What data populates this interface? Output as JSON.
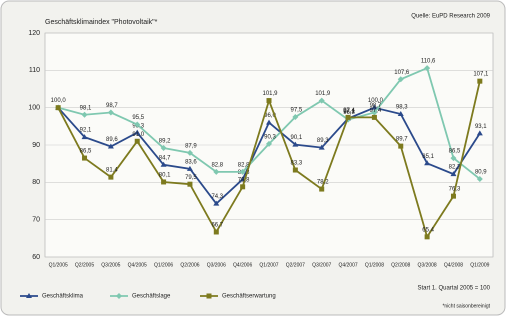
{
  "chart_data": {
    "type": "line",
    "title": "Geschäftsklimaindex \"Photovoltaik\"*",
    "source": "Quelle: EuPD Research 2009",
    "note": "Start 1. Quartal 2005 = 100",
    "footnote": "*nicht saisonbereinigt",
    "categories": [
      "Q1/2005",
      "Q2/2005",
      "Q3/2005",
      "Q4/2005",
      "Q1/2006",
      "Q2/2006",
      "Q3/2006",
      "Q4/2006",
      "Q1/2007",
      "Q2/2007",
      "Q3/2007",
      "Q4/2007",
      "Q1/2008",
      "Q2/2008",
      "Q3/2008",
      "Q4/2008",
      "Q1/2009"
    ],
    "series": [
      {
        "name": "Geschäftsklima",
        "color": "#2b4a8b",
        "marker": "triangle",
        "values": [
          100.0,
          92.1,
          89.6,
          93.3,
          84.7,
          83.6,
          74.3,
          80.8,
          96.0,
          90.1,
          89.3,
          97.1,
          100.0,
          98.3,
          85.1,
          82.2,
          93.1
        ],
        "value_labels": [
          "100,0",
          "92,1",
          "89,6",
          "93,3",
          "84,7",
          "83,6",
          "74,3",
          "80,8",
          "96,0",
          "90,1",
          "89,3",
          "97,1",
          "100,0",
          "98,3",
          "85,1",
          "82,2",
          "93,1"
        ]
      },
      {
        "name": "Geschäftslage",
        "color": "#7fc8b0",
        "marker": "diamond",
        "values": [
          100.0,
          98.1,
          98.7,
          95.5,
          89.2,
          87.9,
          82.8,
          82.8,
          90.3,
          97.5,
          101.9,
          96.8,
          98.7,
          107.6,
          110.6,
          86.5,
          80.9
        ],
        "value_labels": [
          "100,0",
          "98,1",
          "98,7",
          "95,5",
          "89,2",
          "87,9",
          "82,8",
          "82,8",
          "90,3",
          "97,5",
          "101,9",
          "96,8",
          "98,7",
          "107,6",
          "110,6",
          "86,5",
          "80,9"
        ]
      },
      {
        "name": "Geschäftserwartung",
        "color": "#7d7a1e",
        "marker": "square",
        "values": [
          100.0,
          86.5,
          81.4,
          91.0,
          80.1,
          79.5,
          66.7,
          78.8,
          101.9,
          83.3,
          78.2,
          97.4,
          97.4,
          89.7,
          65.4,
          76.3,
          107.1
        ],
        "value_labels": [
          "100,0",
          "86,5",
          "81,4",
          "91,0",
          "80,1",
          "79,5",
          "66,7",
          "78,8",
          "101,9",
          "83,3",
          "78,2",
          "97,4",
          "97,4",
          "89,7",
          "65,4",
          "76,3",
          "107,1"
        ]
      }
    ],
    "ylim": [
      60,
      120
    ],
    "yticks": [
      60,
      70,
      80,
      90,
      100,
      110,
      120
    ],
    "grid": true
  }
}
